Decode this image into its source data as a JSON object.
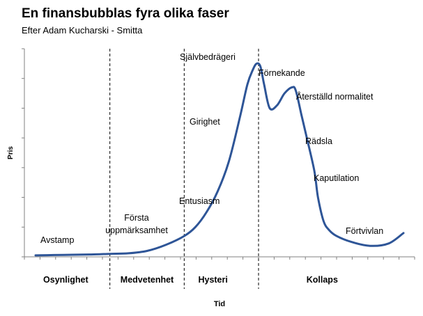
{
  "title": "En finansbubblas fyra olika faser",
  "subtitle": "Efter Adam Kucharski - Smitta",
  "chart_data": {
    "type": "line",
    "xlabel": "Tid",
    "ylabel": "Pris",
    "grid": false,
    "phases": [
      "Osynlighet",
      "Medvetenhet",
      "Hysteri",
      "Kollaps"
    ],
    "phase_boundaries": [
      2,
      4,
      6
    ],
    "annotations": [
      {
        "text": "Avstamp",
        "x": 0.3
      },
      {
        "text": "Första",
        "x": 2.2
      },
      {
        "text": "uppmärksamhet",
        "x": 2.2
      },
      {
        "text": "Entusiasm",
        "x": 4.3
      },
      {
        "text": "Girighet",
        "x": 4.9
      },
      {
        "text": "Självbedrägeri",
        "x": 5.9
      },
      {
        "text": "Förnekande",
        "x": 6.4
      },
      {
        "text": "Återställd normalitet",
        "x": 7.0
      },
      {
        "text": "Rädsla",
        "x": 7.5
      },
      {
        "text": "Kaputilation",
        "x": 7.8
      },
      {
        "text": "Förtvivlan",
        "x": 8.7
      }
    ],
    "series": [
      {
        "color": "#2e5597",
        "x": [
          0,
          0.5,
          1,
          1.5,
          2,
          2.5,
          3,
          3.5,
          4,
          4.3,
          4.6,
          4.9,
          5.2,
          5.5,
          5.7,
          5.85,
          5.95,
          6.05,
          6.15,
          6.3,
          6.5,
          6.7,
          6.9,
          7.0,
          7.15,
          7.3,
          7.5,
          7.6,
          7.75,
          7.9,
          8.1,
          8.5,
          9.0,
          9.5,
          9.9
        ],
        "y": [
          0.5,
          0.6,
          0.7,
          0.8,
          1.0,
          1.2,
          2.0,
          4.0,
          7.0,
          10.0,
          15.0,
          22.0,
          32.0,
          47.0,
          58.0,
          63.0,
          65.0,
          64.0,
          58.0,
          50.0,
          51.0,
          55.0,
          57.0,
          56.0,
          48.0,
          40.0,
          29.0,
          20.0,
          12.0,
          9.0,
          7.0,
          5.0,
          3.7,
          4.5,
          8.0
        ]
      }
    ],
    "xlim": [
      -0.3,
      10.2
    ],
    "ylim": [
      0,
      70
    ]
  }
}
